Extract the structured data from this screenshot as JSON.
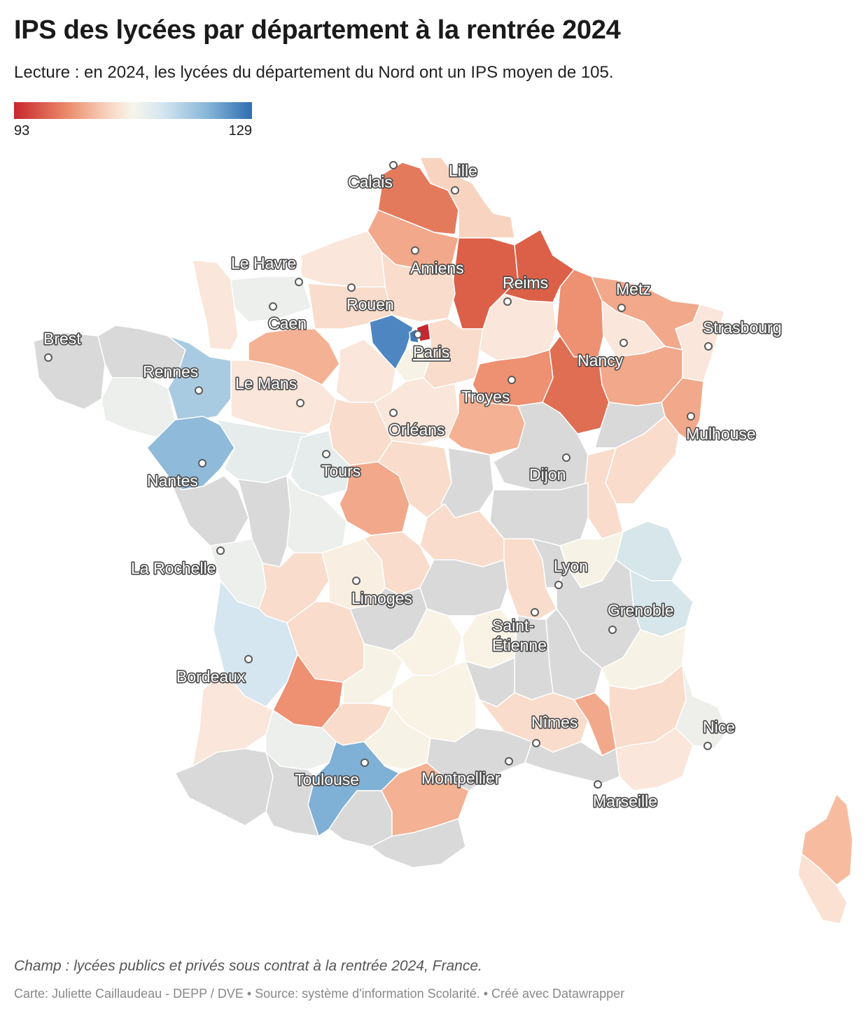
{
  "header": {
    "title": "IPS des lycées par département à la rentrée 2024",
    "subtitle": "Lecture : en 2024, les lycées du département du Nord ont un IPS moyen de 105."
  },
  "legend": {
    "min_label": "93",
    "max_label": "129",
    "color_low": "#c8262e",
    "color_mid": "#f7f5ec",
    "color_high": "#2f6eb2"
  },
  "colors": {
    "no_data": "#d9d9d9",
    "city_label_text": "#ffffff",
    "city_label_outline": "#4a4a4a"
  },
  "cities": [
    {
      "name": "Calais",
      "underline": false
    },
    {
      "name": "Lille",
      "underline": false
    },
    {
      "name": "Amiens",
      "underline": false
    },
    {
      "name": "Le Havre",
      "underline": false
    },
    {
      "name": "Rouen",
      "underline": false
    },
    {
      "name": "Caen",
      "underline": false
    },
    {
      "name": "Reims",
      "underline": false
    },
    {
      "name": "Metz",
      "underline": false
    },
    {
      "name": "Strasbourg",
      "underline": false
    },
    {
      "name": "Nancy",
      "underline": false
    },
    {
      "name": "Paris",
      "underline": true
    },
    {
      "name": "Brest",
      "underline": false
    },
    {
      "name": "Rennes",
      "underline": false
    },
    {
      "name": "Le Mans",
      "underline": false
    },
    {
      "name": "Troyes",
      "underline": false
    },
    {
      "name": "Orléans",
      "underline": false
    },
    {
      "name": "Mulhouse",
      "underline": false
    },
    {
      "name": "Nantes",
      "underline": false
    },
    {
      "name": "Tours",
      "underline": false
    },
    {
      "name": "Dijon",
      "underline": false
    },
    {
      "name": "La Rochelle",
      "underline": false
    },
    {
      "name": "Lyon",
      "underline": false
    },
    {
      "name": "Limoges",
      "underline": false
    },
    {
      "name": "Grenoble",
      "underline": false
    },
    {
      "name": "Saint-\nÉtienne",
      "underline": false
    },
    {
      "name": "Bordeaux",
      "underline": false
    },
    {
      "name": "Nîmes",
      "underline": false
    },
    {
      "name": "Nice",
      "underline": false
    },
    {
      "name": "Toulouse",
      "underline": false
    },
    {
      "name": "Montpellier",
      "underline": false
    },
    {
      "name": "Marseille",
      "underline": false
    }
  ],
  "footer": {
    "note": "Champ : lycées publics et privés sous contrat à la rentrée 2024, France.",
    "credits": "Carte: Juliette Caillaudeau - DEPP / DVE • Source: système d'information Scolarité.  • Créé avec Datawrapper"
  }
}
